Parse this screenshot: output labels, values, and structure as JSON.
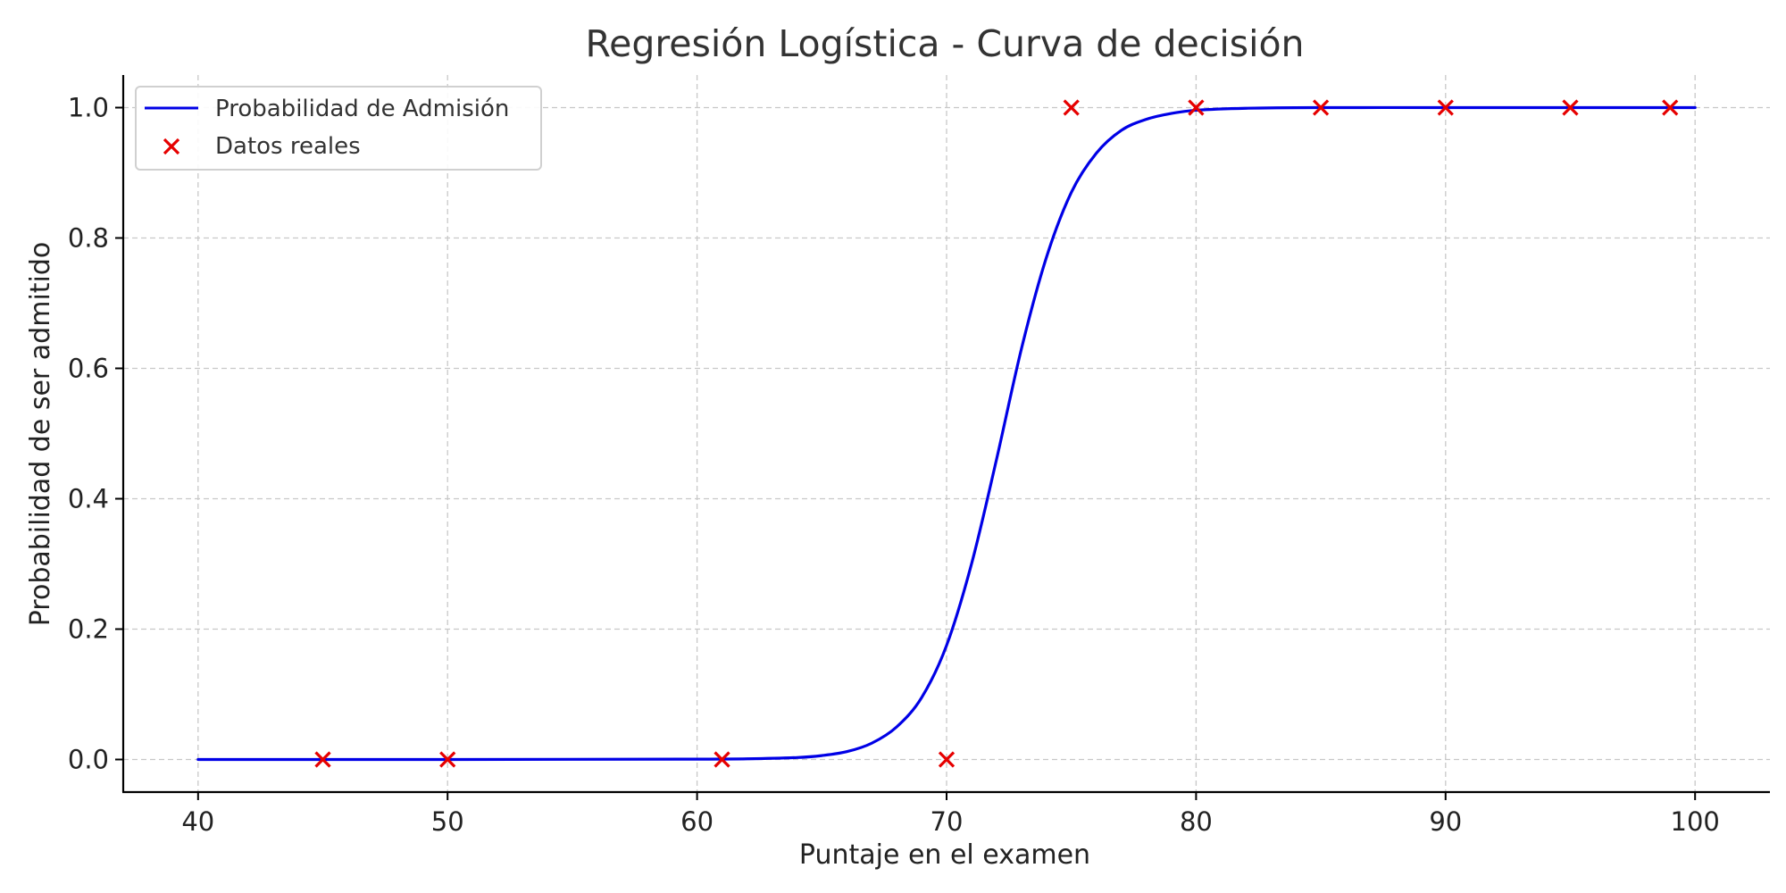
{
  "chart_data": {
    "type": "line",
    "title": "Regresión Logística - Curva de decisión",
    "xlabel": "Puntaje en el examen",
    "ylabel": "Probabilidad de ser admitido",
    "xlim": [
      37,
      103
    ],
    "ylim": [
      -0.05,
      1.05
    ],
    "xticks": [
      40,
      50,
      60,
      70,
      80,
      90,
      100
    ],
    "yticks": [
      0.0,
      0.2,
      0.4,
      0.6,
      0.8,
      1.0
    ],
    "grid": true,
    "legend": "top-left",
    "series": [
      {
        "name": "Probabilidad de Admisión",
        "type": "line",
        "color": "#0000e6",
        "x": [
          40,
          50,
          60,
          62,
          64,
          65,
          66,
          67,
          68,
          69,
          70,
          71,
          72,
          73,
          74,
          75,
          76,
          77,
          78,
          79,
          80,
          82,
          85,
          90,
          100
        ],
        "y": [
          0.0,
          0.0,
          0.0005,
          0.001,
          0.003,
          0.006,
          0.012,
          0.025,
          0.05,
          0.095,
          0.175,
          0.3,
          0.46,
          0.63,
          0.77,
          0.87,
          0.93,
          0.965,
          0.982,
          0.991,
          0.996,
          0.999,
          1.0,
          1.0,
          1.0
        ]
      },
      {
        "name": "Datos reales",
        "type": "scatter",
        "marker": "x",
        "color": "#e60000",
        "x": [
          45,
          50,
          61,
          70,
          75,
          80,
          85,
          90,
          95,
          99
        ],
        "y": [
          0,
          0,
          0,
          0,
          1,
          1,
          1,
          1,
          1,
          1
        ]
      }
    ]
  }
}
